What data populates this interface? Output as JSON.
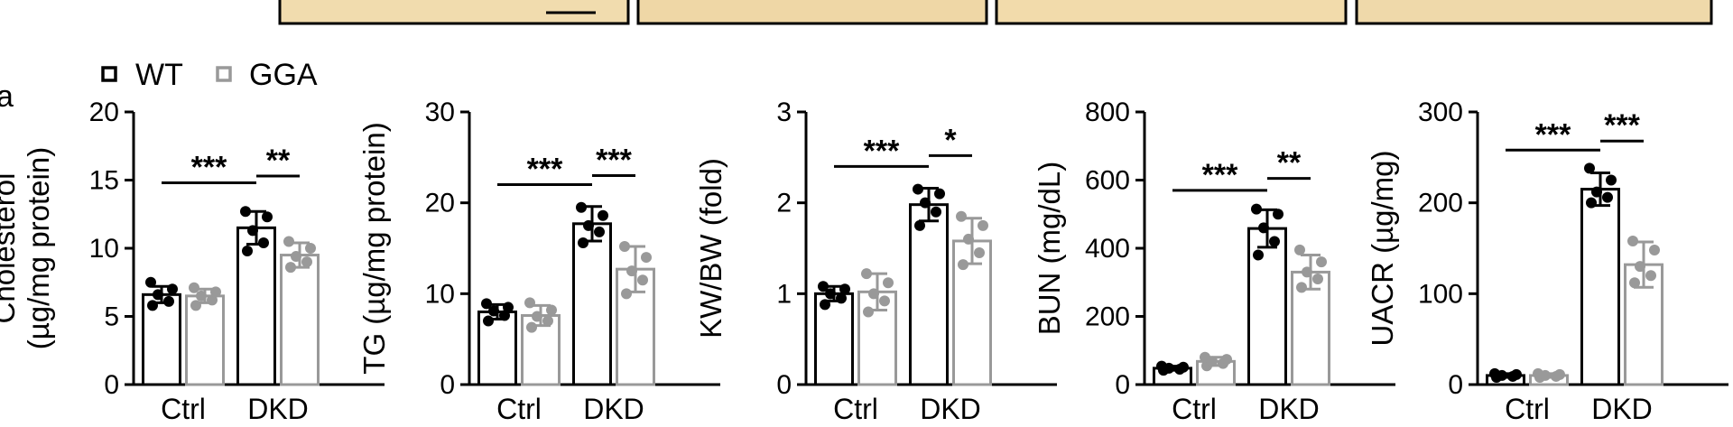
{
  "panel_label": "a",
  "legend": [
    {
      "label": "WT",
      "color": "#000000"
    },
    {
      "label": "GGA",
      "color": "#999999"
    }
  ],
  "chart_data": [
    {
      "type": "bar",
      "categories": [
        "Ctrl",
        "DKD"
      ],
      "ylabel_lines": [
        "Cholesterol",
        "(µg/mg protein)"
      ],
      "ylim": [
        0,
        20
      ],
      "yticks": [
        "0",
        "5",
        "10",
        "15",
        "20"
      ],
      "series": [
        {
          "name": "WT",
          "values": [
            6.6,
            11.5
          ],
          "errors": [
            0.6,
            1.2
          ],
          "points": [
            [
              5.8,
              6.1,
              6.6,
              7.0,
              7.5
            ],
            [
              9.8,
              10.4,
              11.3,
              12.3,
              12.7
            ]
          ]
        },
        {
          "name": "GGA",
          "values": [
            6.5,
            9.5
          ],
          "errors": [
            0.5,
            0.9
          ],
          "points": [
            [
              5.8,
              6.2,
              6.5,
              6.8,
              7.1
            ],
            [
              8.6,
              9.0,
              9.4,
              10.0,
              10.5
            ]
          ]
        }
      ],
      "significance": [
        {
          "label": "***",
          "from": [
            0,
            "WT"
          ],
          "to": [
            1,
            "WT"
          ],
          "y": 14.8
        },
        {
          "label": "**",
          "from": [
            1,
            "WT"
          ],
          "to": [
            1,
            "GGA"
          ],
          "y": 15.3
        }
      ]
    },
    {
      "type": "bar",
      "categories": [
        "Ctrl",
        "DKD"
      ],
      "ylabel_lines": [
        "TG (µg/mg protein)"
      ],
      "ylim": [
        0,
        30
      ],
      "yticks": [
        "0",
        "10",
        "20",
        "30"
      ],
      "series": [
        {
          "name": "WT",
          "values": [
            8.0,
            17.7
          ],
          "errors": [
            0.8,
            1.9
          ],
          "points": [
            [
              7.0,
              7.6,
              8.1,
              8.5,
              8.9
            ],
            [
              15.6,
              16.8,
              17.5,
              18.6,
              19.5
            ]
          ]
        },
        {
          "name": "GGA",
          "values": [
            7.6,
            12.7
          ],
          "errors": [
            1.1,
            2.5
          ],
          "points": [
            [
              6.3,
              7.0,
              7.5,
              8.2,
              9.0
            ],
            [
              10.0,
              11.5,
              12.5,
              14.0,
              15.2
            ]
          ]
        }
      ],
      "significance": [
        {
          "label": "***",
          "from": [
            0,
            "WT"
          ],
          "to": [
            1,
            "WT"
          ],
          "y": 22.0
        },
        {
          "label": "***",
          "from": [
            1,
            "WT"
          ],
          "to": [
            1,
            "GGA"
          ],
          "y": 23.0
        }
      ]
    },
    {
      "type": "bar",
      "categories": [
        "Ctrl",
        "DKD"
      ],
      "ylabel_lines": [
        "KW/BW (fold)"
      ],
      "ylim": [
        0,
        3
      ],
      "yticks": [
        "0",
        "1",
        "2",
        "3"
      ],
      "series": [
        {
          "name": "WT",
          "values": [
            1.0,
            1.98
          ],
          "errors": [
            0.08,
            0.18
          ],
          "points": [
            [
              0.88,
              0.95,
              1.0,
              1.05,
              1.08
            ],
            [
              1.75,
              1.9,
              2.0,
              2.1,
              2.15
            ]
          ]
        },
        {
          "name": "GGA",
          "values": [
            1.02,
            1.58
          ],
          "errors": [
            0.2,
            0.25
          ],
          "points": [
            [
              0.8,
              0.92,
              1.0,
              1.12,
              1.22
            ],
            [
              1.32,
              1.45,
              1.6,
              1.75,
              1.85
            ]
          ]
        }
      ],
      "significance": [
        {
          "label": "***",
          "from": [
            0,
            "WT"
          ],
          "to": [
            1,
            "WT"
          ],
          "y": 2.4
        },
        {
          "label": "*",
          "from": [
            1,
            "WT"
          ],
          "to": [
            1,
            "GGA"
          ],
          "y": 2.52
        }
      ]
    },
    {
      "type": "bar",
      "categories": [
        "Ctrl",
        "DKD"
      ],
      "ylabel_lines": [
        "BUN (mg/dL)"
      ],
      "ylim": [
        0,
        800
      ],
      "yticks": [
        "0",
        "200",
        "400",
        "600",
        "800"
      ],
      "series": [
        {
          "name": "WT",
          "values": [
            48,
            458
          ],
          "errors": [
            6,
            55
          ],
          "points": [
            [
              42,
              45,
              48,
              51,
              54
            ],
            [
              380,
              420,
              460,
              500,
              515
            ]
          ]
        },
        {
          "name": "GGA",
          "values": [
            68,
            330
          ],
          "errors": [
            12,
            50
          ],
          "points": [
            [
              55,
              62,
              68,
              74,
              80
            ],
            [
              285,
              310,
              330,
              360,
              395
            ]
          ]
        }
      ],
      "significance": [
        {
          "label": "***",
          "from": [
            0,
            "WT"
          ],
          "to": [
            1,
            "WT"
          ],
          "y": 570
        },
        {
          "label": "**",
          "from": [
            1,
            "WT"
          ],
          "to": [
            1,
            "GGA"
          ],
          "y": 605
        }
      ]
    },
    {
      "type": "bar",
      "categories": [
        "Ctrl",
        "DKD"
      ],
      "ylabel_lines": [
        "UACR (µg/mg)"
      ],
      "ylim": [
        0,
        300
      ],
      "yticks": [
        "0",
        "100",
        "200",
        "300"
      ],
      "series": [
        {
          "name": "WT",
          "values": [
            10,
            215
          ],
          "errors": [
            2,
            18
          ],
          "points": [
            [
              8,
              9,
              10,
              11,
              12
            ],
            [
              200,
              206,
              212,
              225,
              238
            ]
          ]
        },
        {
          "name": "GGA",
          "values": [
            10,
            132
          ],
          "errors": [
            2,
            25
          ],
          "points": [
            [
              8,
              9,
              10,
              11,
              12
            ],
            [
              112,
              120,
              130,
              148,
              158
            ]
          ]
        }
      ],
      "significance": [
        {
          "label": "***",
          "from": [
            0,
            "WT"
          ],
          "to": [
            1,
            "WT"
          ],
          "y": 258
        },
        {
          "label": "***",
          "from": [
            1,
            "WT"
          ],
          "to": [
            1,
            "GGA"
          ],
          "y": 268
        }
      ]
    }
  ]
}
